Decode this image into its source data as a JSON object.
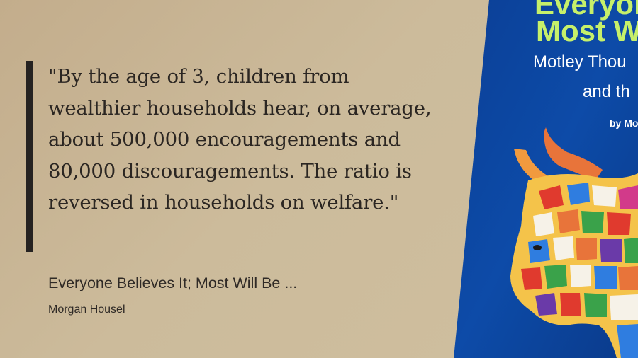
{
  "quote": {
    "text": "\"By the age of 3, children from wealthier households hear, on average, about 500,000 encouragements and 80,000 discouragements. The ratio is reversed in households on welfare.\""
  },
  "source": {
    "title": "Everyone Believes It; Most Will Be ...",
    "author": "Morgan Housel"
  },
  "book_cover": {
    "line1": "Everyone",
    "line2": "Most Wi",
    "line3": "Motley Thou",
    "line4": "and th",
    "line5": "by Mo",
    "colors": {
      "cover_blue": "#0d4ba8",
      "title_green": "#c6f06a"
    }
  }
}
